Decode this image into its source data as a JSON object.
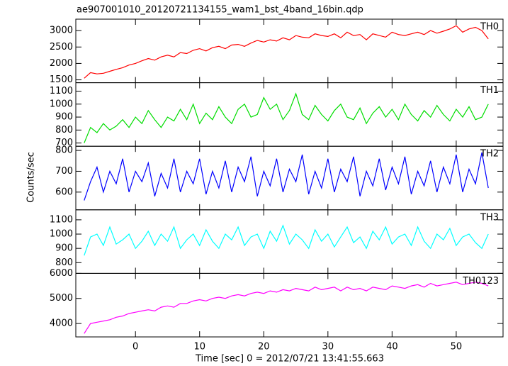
{
  "chart_data": {
    "type": "line",
    "title": "ae907001010_20120721134155_wam1_bst_4band_16bin.qdp",
    "ylabel": "Counts/sec",
    "xlabel": "Time [sec] 0 = 2012/07/21 13:41:55.663",
    "xlim": [
      -9.3,
      57.3
    ],
    "xticks": [
      0,
      10,
      20,
      30,
      40,
      50
    ],
    "x": [
      -8,
      -7,
      -6,
      -5,
      -4,
      -3,
      -2,
      -1,
      0,
      1,
      2,
      3,
      4,
      5,
      6,
      7,
      8,
      9,
      10,
      11,
      12,
      13,
      14,
      15,
      16,
      17,
      18,
      19,
      20,
      21,
      22,
      23,
      24,
      25,
      26,
      27,
      28,
      29,
      30,
      31,
      32,
      33,
      34,
      35,
      36,
      37,
      38,
      39,
      40,
      41,
      42,
      43,
      44,
      45,
      46,
      47,
      48,
      49,
      50,
      51,
      52,
      53,
      54,
      55
    ],
    "series": [
      {
        "name": "TH0",
        "color": "#ff0000",
        "ylim": [
          1413,
          3348
        ],
        "yticks": [
          1500,
          2000,
          2500,
          3000
        ],
        "values": [
          1550,
          1720,
          1680,
          1700,
          1760,
          1820,
          1870,
          1950,
          2000,
          2080,
          2150,
          2100,
          2200,
          2250,
          2200,
          2330,
          2300,
          2400,
          2450,
          2380,
          2480,
          2520,
          2450,
          2560,
          2580,
          2520,
          2620,
          2700,
          2650,
          2720,
          2680,
          2780,
          2720,
          2850,
          2800,
          2780,
          2900,
          2850,
          2820,
          2900,
          2780,
          2950,
          2850,
          2880,
          2720,
          2900,
          2850,
          2800,
          2950,
          2880,
          2850,
          2900,
          2950,
          2880,
          3000,
          2920,
          2980,
          3050,
          3150,
          2950,
          3050,
          3100,
          3000,
          2750
        ]
      },
      {
        "name": "TH1",
        "color": "#00dd00",
        "ylim": [
          675,
          1165
        ],
        "yticks": [
          700,
          800,
          900,
          1000,
          1100
        ],
        "values": [
          700,
          820,
          780,
          850,
          800,
          830,
          880,
          820,
          900,
          850,
          950,
          880,
          820,
          900,
          870,
          960,
          880,
          1000,
          850,
          930,
          880,
          980,
          900,
          850,
          960,
          1000,
          900,
          920,
          1050,
          960,
          1000,
          880,
          950,
          1080,
          920,
          880,
          990,
          920,
          870,
          950,
          1000,
          900,
          880,
          970,
          850,
          930,
          980,
          900,
          960,
          880,
          1000,
          920,
          870,
          950,
          900,
          990,
          920,
          870,
          960,
          900,
          980,
          880,
          900,
          1000
        ]
      },
      {
        "name": "TH2",
        "color": "#0000ff",
        "ylim": [
          515,
          820
        ],
        "yticks": [
          600,
          700,
          800
        ],
        "values": [
          560,
          650,
          720,
          600,
          700,
          640,
          760,
          600,
          700,
          650,
          740,
          580,
          690,
          620,
          760,
          600,
          700,
          640,
          760,
          590,
          700,
          620,
          750,
          600,
          720,
          650,
          770,
          580,
          700,
          630,
          760,
          600,
          710,
          650,
          780,
          590,
          700,
          620,
          760,
          600,
          710,
          650,
          770,
          580,
          700,
          630,
          760,
          610,
          720,
          640,
          770,
          590,
          700,
          630,
          750,
          600,
          720,
          640,
          780,
          600,
          710,
          640,
          790,
          620
        ]
      },
      {
        "name": "TH3",
        "color": "#00ffff",
        "ylim": [
          725,
          1170
        ],
        "yticks": [
          800,
          900,
          1000,
          1100
        ],
        "values": [
          850,
          980,
          1000,
          920,
          1050,
          930,
          960,
          1000,
          900,
          950,
          1020,
          920,
          1000,
          950,
          1050,
          900,
          960,
          1000,
          920,
          1030,
          950,
          900,
          1000,
          960,
          1050,
          920,
          980,
          1000,
          900,
          1020,
          950,
          1060,
          930,
          1000,
          960,
          900,
          1030,
          950,
          1000,
          910,
          980,
          1050,
          940,
          980,
          900,
          1020,
          960,
          1050,
          930,
          980,
          1000,
          920,
          1050,
          950,
          900,
          1000,
          960,
          1040,
          920,
          980,
          1000,
          940,
          900,
          1000
        ]
      },
      {
        "name": "TH0123",
        "color": "#ff00ff",
        "ylim": [
          3465,
          6000
        ],
        "yticks": [
          4000,
          5000,
          6000
        ],
        "values": [
          3600,
          4000,
          4050,
          4100,
          4150,
          4250,
          4300,
          4400,
          4450,
          4500,
          4550,
          4500,
          4650,
          4700,
          4650,
          4800,
          4800,
          4900,
          4950,
          4900,
          5000,
          5050,
          5000,
          5100,
          5150,
          5100,
          5200,
          5250,
          5200,
          5300,
          5250,
          5350,
          5300,
          5400,
          5350,
          5300,
          5450,
          5350,
          5400,
          5450,
          5300,
          5450,
          5350,
          5400,
          5300,
          5450,
          5400,
          5350,
          5500,
          5450,
          5400,
          5500,
          5550,
          5450,
          5600,
          5500,
          5550,
          5600,
          5650,
          5550,
          5600,
          5650,
          5600,
          5500
        ]
      }
    ]
  }
}
